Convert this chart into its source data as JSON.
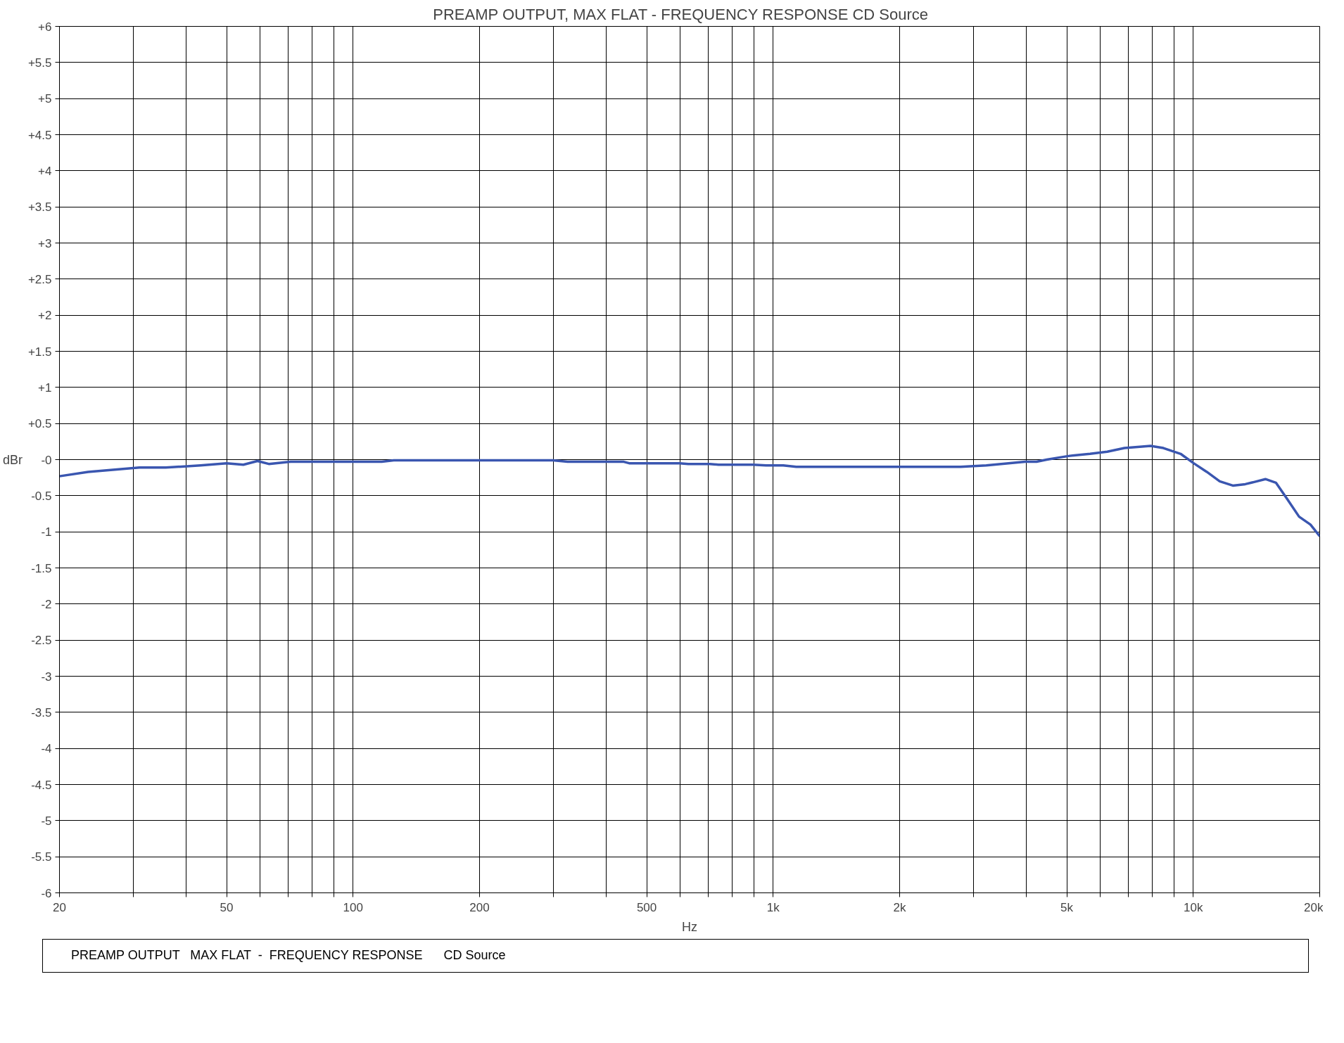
{
  "chart_data": {
    "type": "line",
    "title": "PREAMP OUTPUT, MAX FLAT  -  FREQUENCY RESPONSE   CD Source",
    "xlabel": "Hz",
    "ylabel": "dBr",
    "log": "x",
    "grid": true,
    "marker": "none",
    "line_style": "solid",
    "xlim": [
      20,
      20000
    ],
    "ylim": [
      -6,
      6
    ],
    "xticks": [
      20,
      {
        "value": 30,
        "label": null
      },
      {
        "value": 40,
        "label": null
      },
      50,
      {
        "value": 60,
        "label": null
      },
      {
        "value": 70,
        "label": null
      },
      {
        "value": 80,
        "label": null
      },
      {
        "value": 90,
        "label": null
      },
      100,
      200,
      {
        "value": 300,
        "label": null
      },
      {
        "value": 400,
        "label": null
      },
      500,
      {
        "value": 600,
        "label": null
      },
      {
        "value": 700,
        "label": null
      },
      {
        "value": 800,
        "label": null
      },
      {
        "value": 900,
        "label": null
      },
      {
        "value": 1000,
        "label": "1k"
      },
      {
        "value": 2000,
        "label": "2k"
      },
      {
        "value": 3000,
        "label": null
      },
      {
        "value": 4000,
        "label": null
      },
      {
        "value": 5000,
        "label": "5k"
      },
      {
        "value": 6000,
        "label": null
      },
      {
        "value": 7000,
        "label": null
      },
      {
        "value": 8000,
        "label": null
      },
      {
        "value": 9000,
        "label": null
      },
      {
        "value": 10000,
        "label": "10k"
      },
      {
        "value": 20000,
        "label": "20k"
      }
    ],
    "yticks": [
      {
        "value": 6,
        "label": "+6"
      },
      {
        "value": 5.5,
        "label": "+5.5"
      },
      {
        "value": 5,
        "label": "+5"
      },
      {
        "value": 4.5,
        "label": "+4.5"
      },
      {
        "value": 4,
        "label": "+4"
      },
      {
        "value": 3.5,
        "label": "+3.5"
      },
      {
        "value": 3,
        "label": "+3"
      },
      {
        "value": 2.5,
        "label": "+2.5"
      },
      {
        "value": 2,
        "label": "+2"
      },
      {
        "value": 1.5,
        "label": "+1.5"
      },
      {
        "value": 1,
        "label": "+1"
      },
      {
        "value": 0.5,
        "label": "+0.5"
      },
      {
        "value": 0,
        "label": "-0"
      },
      -0.5,
      -1,
      -1.5,
      -2,
      -2.5,
      -3,
      -3.5,
      -4,
      -4.5,
      -5,
      -5.5,
      -6
    ],
    "annotations": [
      "PREAMP OUTPUT   MAX FLAT  -  FREQUENCY RESPONSE      CD Source"
    ],
    "series": [
      {
        "color": "#3a56b0",
        "x": [
          20,
          23.4,
          31,
          35.8,
          43.3,
          50,
          54.8,
          59.2,
          63,
          71,
          117,
          125,
          299,
          324,
          441,
          454,
          599,
          628,
          707,
          741,
          896,
          962,
          1057,
          1135,
          2793,
          3215,
          3980,
          4236,
          4480,
          5045,
          5680,
          6240,
          6860,
          7550,
          7910,
          8490,
          9330,
          10020,
          10770,
          11560,
          12420,
          13300,
          13960,
          14850,
          15730,
          16710,
          17860,
          19010,
          20000
        ],
        "values": [
          -0.23,
          -0.17,
          -0.11,
          -0.11,
          -0.08,
          -0.05,
          -0.07,
          -0.02,
          -0.06,
          -0.03,
          -0.03,
          -0.01,
          -0.01,
          -0.03,
          -0.03,
          -0.05,
          -0.05,
          -0.06,
          -0.06,
          -0.07,
          -0.07,
          -0.08,
          -0.08,
          -0.1,
          -0.1,
          -0.08,
          -0.03,
          -0.03,
          0,
          0.05,
          0.08,
          0.11,
          0.16,
          0.18,
          0.19,
          0.16,
          0.08,
          -0.05,
          -0.17,
          -0.3,
          -0.36,
          -0.34,
          -0.31,
          -0.27,
          -0.32,
          -0.54,
          -0.79,
          -0.9,
          -1.06
        ]
      }
    ]
  }
}
